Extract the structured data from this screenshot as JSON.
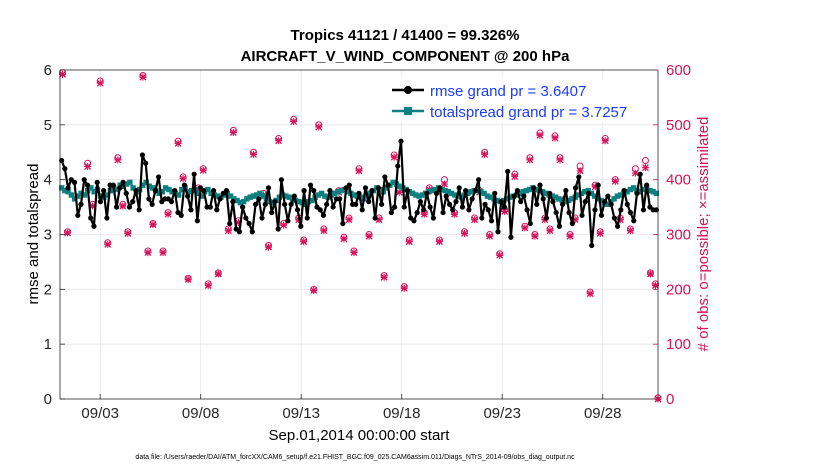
{
  "chart_data": {
    "type": "line",
    "title_line1": "Tropics 41121 / 41400 = 99.326%",
    "title_line2": "AIRCRAFT_V_WIND_COMPONENT @ 200 hPa",
    "xlabel": "Sep.01,2014 00:00:00 start",
    "ylabel_left": "rmse and totalspread",
    "ylabel_right": "# of obs: o=possible; ×=assimilated",
    "footer": "data file: /Users/raeder/DAI/ATM_forcXX/CAM6_setup/f.e21.FHIST_BGC.f09_025.CAM6assim.011/Diags_NTrS_2014-09/obs_diag_output.nc",
    "xlim": [
      1.0,
      30.75
    ],
    "ylim_left": [
      0,
      6
    ],
    "ylim_right": [
      0,
      600
    ],
    "xticks": [
      3,
      8,
      13,
      18,
      23,
      28
    ],
    "xtick_labels": [
      "09/03",
      "09/08",
      "09/13",
      "09/18",
      "09/23",
      "09/28"
    ],
    "yticks_left": [
      "0",
      "1",
      "2",
      "3",
      "4",
      "5",
      "6"
    ],
    "yticks_right": [
      "0",
      "100",
      "200",
      "300",
      "400",
      "500",
      "600"
    ],
    "colors": {
      "rmse": "#000000",
      "spread": "#0c8080",
      "obs": "#d6125a",
      "legend_text": "#1a3cff"
    },
    "series": [
      {
        "name": "rmse",
        "legend": "rmse grand pr = 3.6407",
        "values": [
          4.35,
          4.2,
          3.85,
          4.0,
          3.95,
          3.35,
          3.55,
          4.0,
          3.9,
          3.3,
          3.15,
          3.95,
          3.6,
          3.8,
          3.3,
          3.9,
          3.9,
          3.5,
          3.85,
          3.95,
          3.75,
          3.5,
          3.6,
          3.8,
          3.45,
          4.45,
          4.3,
          3.65,
          3.55,
          3.8,
          4.05,
          3.6,
          3.65,
          3.65,
          3.6,
          3.8,
          3.4,
          3.35,
          3.9,
          3.7,
          3.45,
          4.1,
          3.25,
          3.85,
          3.8,
          3.5,
          3.5,
          3.8,
          3.45,
          3.65,
          3.75,
          3.8,
          3.2,
          3.6,
          3.1,
          3.05,
          3.5,
          3.3,
          3.2,
          3.05,
          3.55,
          3.65,
          3.3,
          3.55,
          3.85,
          3.4,
          3.6,
          3.1,
          4.0,
          3.55,
          3.25,
          3.55,
          3.7,
          3.45,
          3.15,
          3.8,
          3.3,
          3.9,
          3.8,
          3.5,
          3.45,
          3.35,
          3.55,
          3.8,
          3.5,
          3.65,
          3.65,
          3.2,
          3.85,
          3.9,
          3.55,
          3.55,
          3.75,
          3.45,
          3.85,
          3.6,
          3.8,
          3.3,
          3.85,
          3.55,
          4.05,
          3.9,
          3.4,
          3.5,
          4.25,
          4.7,
          3.5,
          3.8,
          3.3,
          3.25,
          3.4,
          3.6,
          3.45,
          3.75,
          3.5,
          3.3,
          3.75,
          3.85,
          3.4,
          3.7,
          3.55,
          3.45,
          3.6,
          3.85,
          3.5,
          3.8,
          3.45,
          3.65,
          3.8,
          4.0,
          3.3,
          3.55,
          3.45,
          3.25,
          3.75,
          3.05,
          3.6,
          3.5,
          4.15,
          2.95,
          3.7,
          3.8,
          3.6,
          3.7,
          3.45,
          3.2,
          3.85,
          3.55,
          3.9,
          3.65,
          3.3,
          3.75,
          3.6,
          3.4,
          3.15,
          3.55,
          3.8,
          3.4,
          3.2,
          3.85,
          4.05,
          3.35,
          3.6,
          3.75,
          2.8,
          3.45,
          3.9,
          3.35,
          3.6,
          3.7,
          3.55,
          3.3,
          3.15,
          3.45,
          3.8,
          3.55,
          3.4,
          3.25,
          3.75,
          4.1,
          3.45,
          3.9,
          3.5,
          3.45,
          3.45
        ]
      },
      {
        "name": "totalspread",
        "legend": "totalspread grand pr = 3.7257",
        "values": [
          3.85,
          3.8,
          3.78,
          3.72,
          3.65,
          3.7,
          3.75,
          3.72,
          3.8,
          3.85,
          3.78,
          3.82,
          3.7,
          3.68,
          3.72,
          3.8,
          3.85,
          3.82,
          3.9,
          3.88,
          3.92,
          3.95,
          3.85,
          3.78,
          3.82,
          3.9,
          3.95,
          3.88,
          3.85,
          3.8,
          3.75,
          3.78,
          3.85,
          3.82,
          3.78,
          3.75,
          3.72,
          3.82,
          3.85,
          3.78,
          3.8,
          3.82,
          3.75,
          3.7,
          3.78,
          3.82,
          3.75,
          3.72,
          3.7,
          3.68,
          3.72,
          3.75,
          3.7,
          3.65,
          3.62,
          3.58,
          3.6,
          3.65,
          3.68,
          3.7,
          3.72,
          3.75,
          3.7,
          3.65,
          3.6,
          3.58,
          3.62,
          3.68,
          3.72,
          3.7,
          3.68,
          3.65,
          3.62,
          3.6,
          3.58,
          3.55,
          3.6,
          3.62,
          3.68,
          3.72,
          3.75,
          3.7,
          3.68,
          3.72,
          3.75,
          3.78,
          3.8,
          3.82,
          3.78,
          3.75,
          3.72,
          3.7,
          3.68,
          3.65,
          3.7,
          3.75,
          3.8,
          3.85,
          3.82,
          3.78,
          3.85,
          3.9,
          3.95,
          3.92,
          3.88,
          3.85,
          3.82,
          3.78,
          3.75,
          3.72,
          3.7,
          3.72,
          3.75,
          3.78,
          3.8,
          3.82,
          3.85,
          3.82,
          3.8,
          3.78,
          3.75,
          3.72,
          3.7,
          3.68,
          3.72,
          3.75,
          3.78,
          3.8,
          3.82,
          3.78,
          3.75,
          3.7,
          3.68,
          3.65,
          3.62,
          3.6,
          3.62,
          3.65,
          3.68,
          3.7,
          3.72,
          3.75,
          3.78,
          3.8,
          3.82,
          3.85,
          3.82,
          3.8,
          3.78,
          3.75,
          3.72,
          3.7,
          3.68,
          3.65,
          3.62,
          3.6,
          3.62,
          3.65,
          3.68,
          3.72,
          3.75,
          3.78,
          3.8,
          3.75,
          3.7,
          3.65,
          3.62,
          3.58,
          3.55,
          3.6,
          3.65,
          3.7,
          3.72,
          3.75,
          3.78,
          3.82,
          3.85,
          3.8,
          3.78,
          3.82,
          3.85,
          3.8,
          3.78,
          3.75
        ]
      }
    ],
    "obs_possible": [
      [
        1.125,
        595
      ],
      [
        1.375,
        305
      ],
      [
        2.375,
        430
      ],
      [
        2.625,
        355
      ],
      [
        3.0,
        580
      ],
      [
        3.375,
        285
      ],
      [
        3.875,
        440
      ],
      [
        4.125,
        355
      ],
      [
        4.375,
        305
      ],
      [
        5.125,
        590
      ],
      [
        5.375,
        270
      ],
      [
        5.625,
        320
      ],
      [
        6.125,
        270
      ],
      [
        6.375,
        340
      ],
      [
        6.875,
        470
      ],
      [
        7.125,
        405
      ],
      [
        7.375,
        220
      ],
      [
        7.875,
        385
      ],
      [
        8.125,
        420
      ],
      [
        8.375,
        210
      ],
      [
        8.875,
        230
      ],
      [
        9.375,
        310
      ],
      [
        9.625,
        490
      ],
      [
        9.875,
        325
      ],
      [
        10.625,
        450
      ],
      [
        11.125,
        375
      ],
      [
        11.375,
        280
      ],
      [
        11.875,
        475
      ],
      [
        12.125,
        320
      ],
      [
        12.625,
        510
      ],
      [
        12.875,
        330
      ],
      [
        13.125,
        290
      ],
      [
        13.625,
        200
      ],
      [
        13.875,
        500
      ],
      [
        14.125,
        310
      ],
      [
        14.875,
        380
      ],
      [
        15.125,
        295
      ],
      [
        15.375,
        330
      ],
      [
        15.625,
        270
      ],
      [
        15.875,
        420
      ],
      [
        16.375,
        300
      ],
      [
        16.875,
        330
      ],
      [
        17.125,
        225
      ],
      [
        17.625,
        445
      ],
      [
        17.875,
        380
      ],
      [
        18.125,
        205
      ],
      [
        18.375,
        290
      ],
      [
        19.125,
        340
      ],
      [
        19.375,
        385
      ],
      [
        19.875,
        290
      ],
      [
        20.125,
        400
      ],
      [
        20.625,
        340
      ],
      [
        21.125,
        305
      ],
      [
        21.625,
        330
      ],
      [
        21.875,
        380
      ],
      [
        22.125,
        450
      ],
      [
        22.375,
        300
      ],
      [
        22.875,
        265
      ],
      [
        23.125,
        345
      ],
      [
        23.625,
        410
      ],
      [
        24.125,
        315
      ],
      [
        24.375,
        440
      ],
      [
        24.625,
        300
      ],
      [
        24.875,
        485
      ],
      [
        25.125,
        330
      ],
      [
        25.375,
        310
      ],
      [
        25.625,
        480
      ],
      [
        25.875,
        440
      ],
      [
        26.125,
        365
      ],
      [
        26.375,
        300
      ],
      [
        26.625,
        330
      ],
      [
        26.875,
        425
      ],
      [
        27.375,
        195
      ],
      [
        27.625,
        390
      ],
      [
        27.875,
        305
      ],
      [
        28.125,
        475
      ],
      [
        28.625,
        400
      ],
      [
        28.875,
        330
      ],
      [
        29.375,
        310
      ],
      [
        29.625,
        420
      ],
      [
        30.125,
        435
      ],
      [
        30.375,
        230
      ],
      [
        30.625,
        210
      ],
      [
        30.75,
        2
      ]
    ],
    "obs_assimilated": [
      [
        1.125,
        592
      ],
      [
        1.375,
        303
      ],
      [
        2.375,
        424
      ],
      [
        2.625,
        352
      ],
      [
        3.0,
        576
      ],
      [
        3.375,
        282
      ],
      [
        3.875,
        436
      ],
      [
        4.125,
        352
      ],
      [
        4.375,
        302
      ],
      [
        5.125,
        587
      ],
      [
        5.375,
        267
      ],
      [
        5.625,
        318
      ],
      [
        6.125,
        267
      ],
      [
        6.375,
        337
      ],
      [
        6.875,
        466
      ],
      [
        7.125,
        402
      ],
      [
        7.375,
        218
      ],
      [
        7.875,
        382
      ],
      [
        8.125,
        417
      ],
      [
        8.375,
        207
      ],
      [
        8.875,
        228
      ],
      [
        9.375,
        307
      ],
      [
        9.625,
        486
      ],
      [
        9.875,
        322
      ],
      [
        10.625,
        446
      ],
      [
        11.125,
        372
      ],
      [
        11.375,
        277
      ],
      [
        11.875,
        471
      ],
      [
        12.125,
        317
      ],
      [
        12.625,
        506
      ],
      [
        12.875,
        327
      ],
      [
        13.125,
        287
      ],
      [
        13.625,
        198
      ],
      [
        13.875,
        496
      ],
      [
        14.125,
        307
      ],
      [
        14.875,
        377
      ],
      [
        15.125,
        292
      ],
      [
        15.375,
        327
      ],
      [
        15.625,
        267
      ],
      [
        15.875,
        416
      ],
      [
        16.375,
        297
      ],
      [
        16.875,
        327
      ],
      [
        17.125,
        222
      ],
      [
        17.625,
        441
      ],
      [
        17.875,
        377
      ],
      [
        18.125,
        202
      ],
      [
        18.375,
        287
      ],
      [
        19.125,
        337
      ],
      [
        19.375,
        382
      ],
      [
        19.875,
        287
      ],
      [
        20.125,
        392
      ],
      [
        20.625,
        337
      ],
      [
        21.125,
        302
      ],
      [
        21.625,
        327
      ],
      [
        21.875,
        377
      ],
      [
        22.125,
        446
      ],
      [
        22.375,
        297
      ],
      [
        22.875,
        262
      ],
      [
        23.125,
        342
      ],
      [
        23.625,
        406
      ],
      [
        24.125,
        312
      ],
      [
        24.375,
        436
      ],
      [
        24.625,
        297
      ],
      [
        24.875,
        481
      ],
      [
        25.125,
        327
      ],
      [
        25.375,
        307
      ],
      [
        25.625,
        476
      ],
      [
        25.875,
        436
      ],
      [
        26.125,
        362
      ],
      [
        26.375,
        297
      ],
      [
        26.625,
        327
      ],
      [
        26.875,
        416
      ],
      [
        27.375,
        192
      ],
      [
        27.625,
        387
      ],
      [
        27.875,
        302
      ],
      [
        28.125,
        471
      ],
      [
        28.625,
        397
      ],
      [
        28.875,
        327
      ],
      [
        29.375,
        307
      ],
      [
        29.625,
        412
      ],
      [
        30.125,
        422
      ],
      [
        30.375,
        228
      ],
      [
        30.625,
        207
      ],
      [
        30.75,
        0
      ]
    ]
  }
}
